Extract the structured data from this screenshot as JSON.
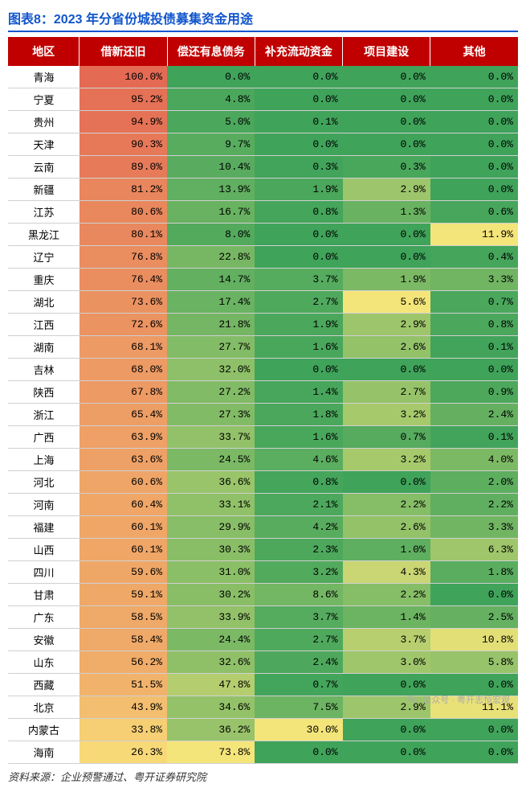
{
  "title": "图表8：2023 年分省份城投债募集资金用途",
  "source": "资料来源：企业预警通过、粤开证券研究院",
  "watermark": "公众号 · 粤开志恒宏观",
  "table": {
    "headers": [
      "地区",
      "借新还旧",
      "偿还有息债务",
      "补充流动资金",
      "项目建设",
      "其他"
    ],
    "header_bg": "#c00000",
    "header_fg": "#ffffff",
    "col_widths": [
      "14%",
      "17.2%",
      "17.2%",
      "17.2%",
      "17.2%",
      "17.2%"
    ],
    "heat": {
      "col1": {
        "min": 26.3,
        "max": 100.0,
        "low": "#f8d978",
        "high": "#e46a54"
      },
      "col2": {
        "min": 0.0,
        "max": 73.8,
        "low": "#3fa35a",
        "high": "#f4e57a"
      },
      "col3": {
        "min": 0.0,
        "max": 30.0,
        "low": "#3fa35a",
        "high": "#f4e57a"
      },
      "col4": {
        "min": 0.0,
        "max": 5.6,
        "low": "#3fa35a",
        "high": "#f4e57a"
      },
      "col5": {
        "min": 0.0,
        "max": 11.9,
        "low": "#3fa35a",
        "high": "#f4e57a"
      }
    },
    "rows": [
      {
        "region": "青海",
        "v": [
          100.0,
          0.0,
          0.0,
          0.0,
          0.0
        ]
      },
      {
        "region": "宁夏",
        "v": [
          95.2,
          4.8,
          0.0,
          0.0,
          0.0
        ]
      },
      {
        "region": "贵州",
        "v": [
          94.9,
          5.0,
          0.1,
          0.0,
          0.0
        ]
      },
      {
        "region": "天津",
        "v": [
          90.3,
          9.7,
          0.0,
          0.0,
          0.0
        ]
      },
      {
        "region": "云南",
        "v": [
          89.0,
          10.4,
          0.3,
          0.3,
          0.0
        ]
      },
      {
        "region": "新疆",
        "v": [
          81.2,
          13.9,
          1.9,
          2.9,
          0.0
        ]
      },
      {
        "region": "江苏",
        "v": [
          80.6,
          16.7,
          0.8,
          1.3,
          0.6
        ]
      },
      {
        "region": "黑龙江",
        "v": [
          80.1,
          8.0,
          0.0,
          0.0,
          11.9
        ]
      },
      {
        "region": "辽宁",
        "v": [
          76.8,
          22.8,
          0.0,
          0.0,
          0.4
        ]
      },
      {
        "region": "重庆",
        "v": [
          76.4,
          14.7,
          3.7,
          1.9,
          3.3
        ]
      },
      {
        "region": "湖北",
        "v": [
          73.6,
          17.4,
          2.7,
          5.6,
          0.7
        ]
      },
      {
        "region": "江西",
        "v": [
          72.6,
          21.8,
          1.9,
          2.9,
          0.8
        ]
      },
      {
        "region": "湖南",
        "v": [
          68.1,
          27.7,
          1.6,
          2.6,
          0.1
        ]
      },
      {
        "region": "吉林",
        "v": [
          68.0,
          32.0,
          0.0,
          0.0,
          0.0
        ]
      },
      {
        "region": "陕西",
        "v": [
          67.8,
          27.2,
          1.4,
          2.7,
          0.9
        ]
      },
      {
        "region": "浙江",
        "v": [
          65.4,
          27.3,
          1.8,
          3.2,
          2.4
        ]
      },
      {
        "region": "广西",
        "v": [
          63.9,
          33.7,
          1.6,
          0.7,
          0.1
        ]
      },
      {
        "region": "上海",
        "v": [
          63.6,
          24.5,
          4.6,
          3.2,
          4.0
        ]
      },
      {
        "region": "河北",
        "v": [
          60.6,
          36.6,
          0.8,
          0.0,
          2.0
        ]
      },
      {
        "region": "河南",
        "v": [
          60.4,
          33.1,
          2.1,
          2.2,
          2.2
        ]
      },
      {
        "region": "福建",
        "v": [
          60.1,
          29.9,
          4.2,
          2.6,
          3.3
        ]
      },
      {
        "region": "山西",
        "v": [
          60.1,
          30.3,
          2.3,
          1.0,
          6.3
        ]
      },
      {
        "region": "四川",
        "v": [
          59.6,
          31.0,
          3.2,
          4.3,
          1.8
        ]
      },
      {
        "region": "甘肃",
        "v": [
          59.1,
          30.2,
          8.6,
          2.2,
          0.0
        ]
      },
      {
        "region": "广东",
        "v": [
          58.5,
          33.9,
          3.7,
          1.4,
          2.5
        ]
      },
      {
        "region": "安徽",
        "v": [
          58.4,
          24.4,
          2.7,
          3.7,
          10.8
        ]
      },
      {
        "region": "山东",
        "v": [
          56.2,
          32.6,
          2.4,
          3.0,
          5.8
        ]
      },
      {
        "region": "西藏",
        "v": [
          51.5,
          47.8,
          0.7,
          0.0,
          0.0
        ]
      },
      {
        "region": "北京",
        "v": [
          43.9,
          34.6,
          7.5,
          2.9,
          11.1
        ]
      },
      {
        "region": "内蒙古",
        "v": [
          33.8,
          36.2,
          30.0,
          0.0,
          0.0
        ]
      },
      {
        "region": "海南",
        "v": [
          26.3,
          73.8,
          0.0,
          0.0,
          0.0
        ]
      }
    ]
  }
}
